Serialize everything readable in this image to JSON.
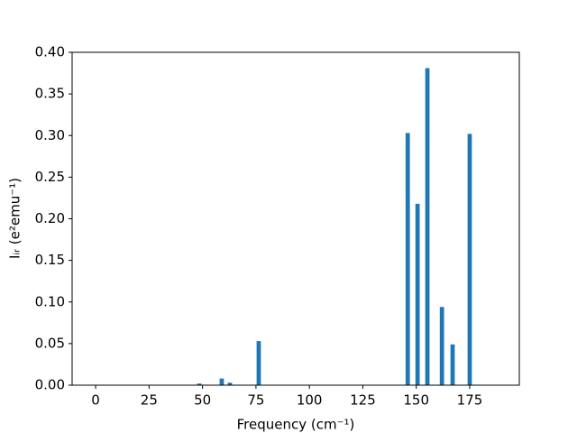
{
  "chart_data": {
    "type": "bar",
    "xlabel": "Frequency (cm⁻¹)",
    "ylabel": "Iᵢᵣ (e²emu⁻¹)",
    "x": [
      48.5,
      59,
      62.8,
      76.3,
      146,
      150.6,
      155.2,
      162,
      167,
      175
    ],
    "values": [
      0.002,
      0.008,
      0.003,
      0.053,
      0.303,
      0.218,
      0.381,
      0.094,
      0.049,
      0.302
    ],
    "color": "#1f77b4",
    "xlim": [
      -11,
      198.2
    ],
    "xticks": [
      0,
      25,
      50,
      75,
      100,
      125,
      150,
      175
    ],
    "ylim": [
      0,
      0.4
    ],
    "yticks": [
      {
        "value": 0,
        "label": "0.00"
      },
      0.05,
      {
        "value": 0.1,
        "label": "0.10"
      },
      0.15,
      {
        "value": 0.2,
        "label": "0.20"
      },
      0.25,
      {
        "value": 0.3,
        "label": "0.30"
      },
      0.35,
      {
        "value": 0.4,
        "label": "0.40"
      }
    ],
    "grid": false
  }
}
